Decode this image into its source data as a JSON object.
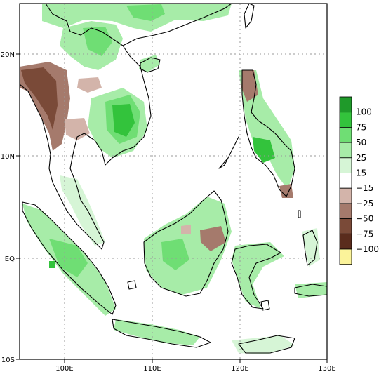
{
  "map": {
    "lon_ticks": [
      "100E",
      "110E",
      "120E",
      "130E"
    ],
    "lat_ticks": [
      "20N",
      "10N",
      "EQ",
      "10S"
    ],
    "lon_range": [
      95,
      130
    ],
    "lat_range": [
      -10,
      25
    ]
  },
  "legend": {
    "entries": [
      {
        "label": "100",
        "color": "#1f9a2a"
      },
      {
        "label": "75",
        "color": "#33c33c"
      },
      {
        "label": "50",
        "color": "#6fde74"
      },
      {
        "label": "25",
        "color": "#a7eca8"
      },
      {
        "label": "15",
        "color": "#d6f5d6"
      },
      {
        "label": "−15",
        "color": "#ffffff"
      },
      {
        "label": "−25",
        "color": "#d3b4aa"
      },
      {
        "label": "−50",
        "color": "#a57a6c"
      },
      {
        "label": "−75",
        "color": "#7a4a38"
      },
      {
        "label": "−100",
        "color": "#5a2c1d"
      },
      {
        "label": "",
        "color": "#fbf39a"
      }
    ]
  },
  "colors": {
    "green_light": "#d6f5d6",
    "green_mid": "#a7eca8",
    "green": "#6fde74",
    "green_strong": "#33c33c",
    "green_dark": "#1f9a2a",
    "brown_light": "#d3b4aa",
    "brown": "#a57a6c",
    "brown_dark": "#7a4a38"
  }
}
